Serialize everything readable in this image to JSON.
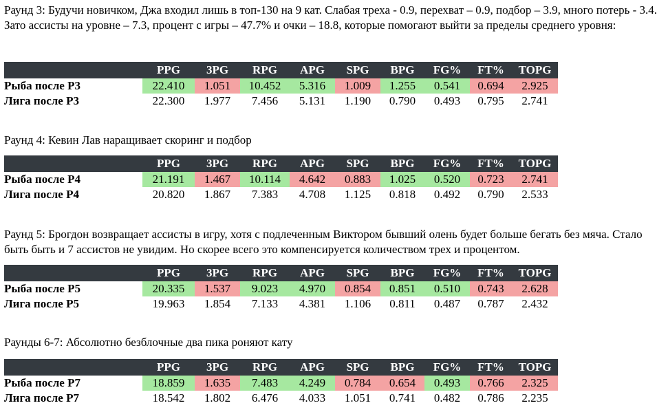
{
  "colors": {
    "header_bg": "#343a40",
    "header_text": "#ffffff",
    "good": "#a6e8a0",
    "bad": "#f4a3a3"
  },
  "columns": [
    "PPG",
    "3PG",
    "RPG",
    "APG",
    "SPG",
    "BPG",
    "FG%",
    "FT%",
    "TOPG"
  ],
  "sections": [
    {
      "text": "Раунд 3: Будучи новичком, Джа входил лишь в топ-130 на 9 кат. Слабая треха - 0.9, перехват – 0.9, подбор – 3.9, много потерь - 3.4. Зато ассисты на уровне – 7.3, процент с игры – 47.7% и очки – 18.8, которые помогают выйти за пределы среднего уровня:",
      "team": {
        "label": "Рыба после Р3",
        "values": [
          "22.410",
          "1.051",
          "10.452",
          "5.316",
          "1.009",
          "1.255",
          "0.541",
          "0.694",
          "2.925"
        ],
        "status": [
          "good",
          "bad",
          "good",
          "good",
          "bad",
          "good",
          "good",
          "bad",
          "bad"
        ]
      },
      "league": {
        "label": "Лига после Р3",
        "values": [
          "22.300",
          "1.977",
          "7.456",
          "5.131",
          "1.190",
          "0.790",
          "0.493",
          "0.795",
          "2.741"
        ]
      }
    },
    {
      "text": "Раунд 4: Кевин Лав наращивает скоринг и подбор",
      "team": {
        "label": "Рыба после Р4",
        "values": [
          "21.191",
          "1.467",
          "10.114",
          "4.642",
          "0.883",
          "1.025",
          "0.520",
          "0.723",
          "2.741"
        ],
        "status": [
          "good",
          "bad",
          "good",
          "bad",
          "bad",
          "good",
          "good",
          "bad",
          "bad"
        ]
      },
      "league": {
        "label": "Лига после Р4",
        "values": [
          "20.820",
          "1.867",
          "7.383",
          "4.708",
          "1.125",
          "0.818",
          "0.492",
          "0.790",
          "2.533"
        ]
      }
    },
    {
      "text": "Раунд 5: Брогдон возвращает ассисты в игру, хотя с подлеченным Виктором бывший олень будет больше бегать без мяча. Стало быть быть и 7 ассистов не увидим. Но скорее всего это компенсируется количеством трех и процентом.",
      "team": {
        "label": "Рыба после Р5",
        "values": [
          "20.335",
          "1.537",
          "9.023",
          "4.970",
          "0.854",
          "0.851",
          "0.510",
          "0.743",
          "2.628"
        ],
        "status": [
          "good",
          "bad",
          "good",
          "good",
          "bad",
          "good",
          "good",
          "bad",
          "bad"
        ]
      },
      "league": {
        "label": "Лига после Р5",
        "values": [
          "19.963",
          "1.854",
          "7.133",
          "4.381",
          "1.106",
          "0.811",
          "0.487",
          "0.787",
          "2.432"
        ]
      }
    },
    {
      "text": "Раунды 6-7: Абсолютно безблочные два пика роняют кату",
      "team": {
        "label": "Рыба после Р7",
        "values": [
          "18.859",
          "1.635",
          "7.483",
          "4.249",
          "0.784",
          "0.654",
          "0.493",
          "0.766",
          "2.325"
        ],
        "status": [
          "good",
          "bad",
          "good",
          "good",
          "bad",
          "bad",
          "good",
          "bad",
          "bad"
        ]
      },
      "league": {
        "label": "Лига после Р7",
        "values": [
          "18.542",
          "1.802",
          "6.476",
          "4.033",
          "1.051",
          "0.741",
          "0.482",
          "0.786",
          "2.235"
        ]
      }
    }
  ]
}
